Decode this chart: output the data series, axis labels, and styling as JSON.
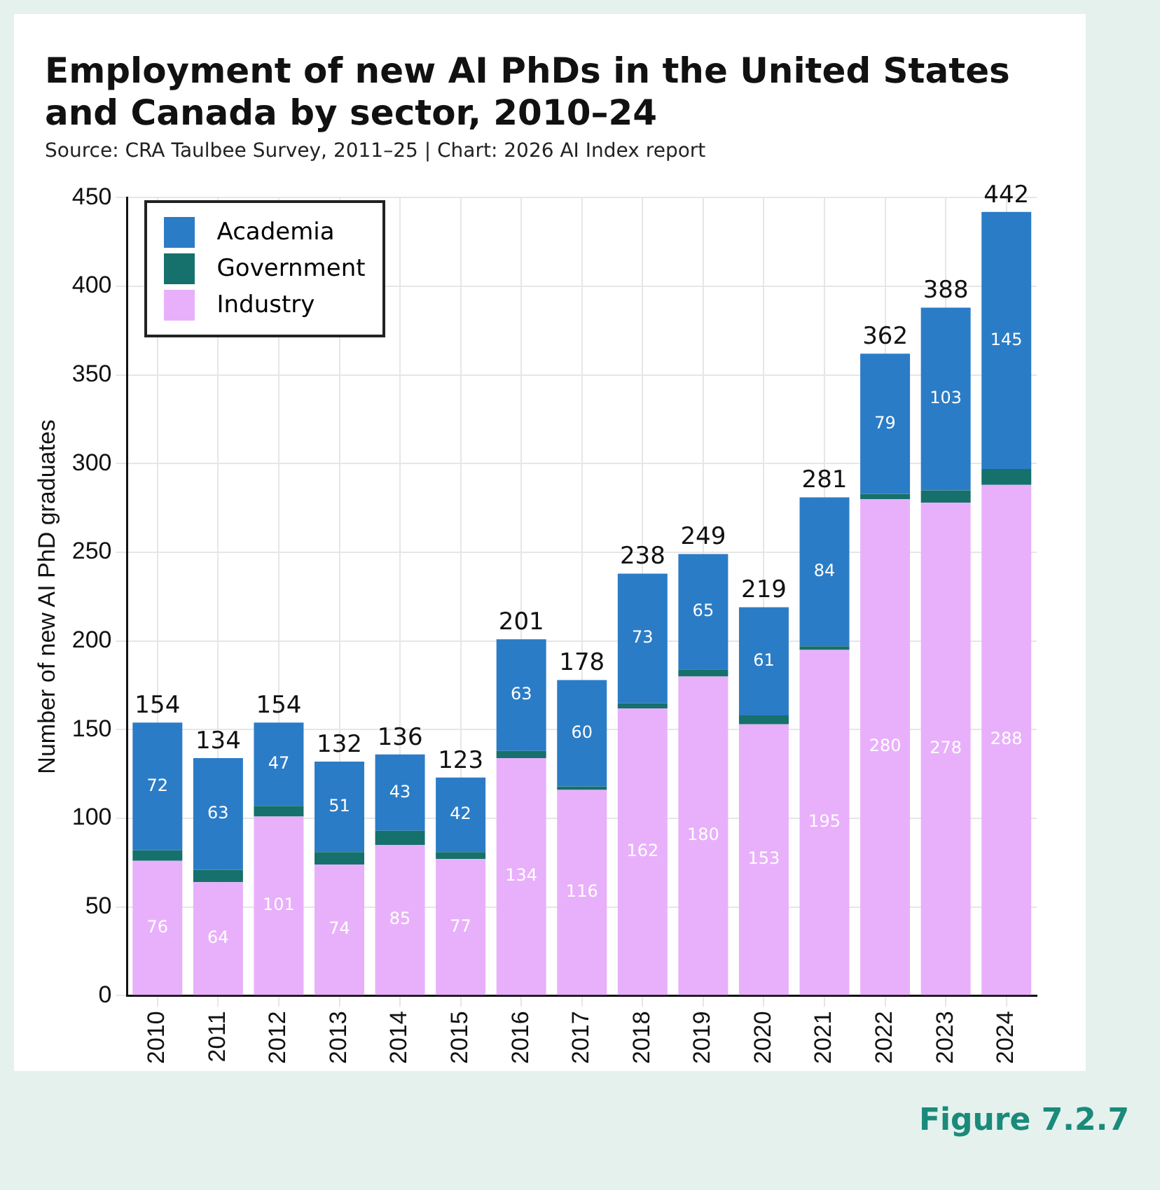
{
  "chart_data": {
    "type": "bar",
    "title": "Employment of new AI PhDs in the United States and Canada by sector, 2010–24",
    "subtitle": "Source: CRA Taulbee Survey, 2011–25 | Chart: 2026 AI Index report",
    "ylabel": "Number of new AI PhD graduates",
    "annotations": [
      "Figure 7.2.7"
    ],
    "categories": [
      "2010",
      "2011",
      "2012",
      "2013",
      "2014",
      "2015",
      "2016",
      "2017",
      "2018",
      "2019",
      "2020",
      "2021",
      "2022",
      "2023",
      "2024"
    ],
    "stacked": true,
    "ylim": [
      0,
      450
    ],
    "yticks": [
      0,
      50,
      100,
      150,
      200,
      250,
      300,
      350,
      400,
      450
    ],
    "grid": true,
    "legend": "top left",
    "series": [
      {
        "name": "Industry",
        "color": "#e8b0fa",
        "values": [
          76,
          64,
          101,
          74,
          85,
          77,
          134,
          116,
          162,
          180,
          153,
          195,
          280,
          278,
          288
        ],
        "value_labels": [
          "76",
          "64",
          "101",
          "74",
          "85",
          "77",
          "134",
          "116",
          "162",
          "180",
          "153",
          "195",
          "280",
          "278",
          "288"
        ]
      },
      {
        "name": "Government",
        "color": "#16706c",
        "values": [
          6,
          7,
          6,
          7,
          8,
          4,
          4,
          2,
          3,
          4,
          5,
          2,
          3,
          7,
          9
        ]
      },
      {
        "name": "Academia",
        "color": "#2b7cc6",
        "values": [
          72,
          63,
          47,
          51,
          43,
          42,
          63,
          60,
          73,
          65,
          61,
          84,
          79,
          103,
          145
        ],
        "value_labels": [
          "72",
          "63",
          "47",
          "51",
          "43",
          "42",
          "63",
          "60",
          "73",
          "65",
          "61",
          "84",
          "79",
          "103",
          "145"
        ]
      }
    ],
    "totals": [
      "154",
      "134",
      "154",
      "132",
      "136",
      "123",
      "201",
      "178",
      "238",
      "249",
      "219",
      "281",
      "362",
      "388",
      "442"
    ]
  }
}
